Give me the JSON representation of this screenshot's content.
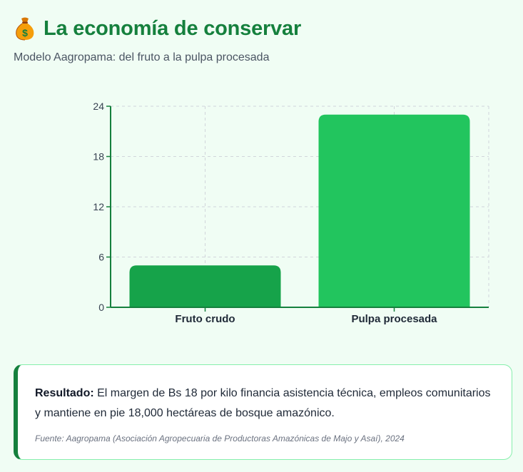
{
  "header": {
    "icon": "money-bag-icon",
    "title": "La economía de conservar",
    "subtitle": "Modelo Aagropama: del fruto a la pulpa procesada"
  },
  "chart_data": {
    "type": "bar",
    "categories": [
      "Fruto crudo",
      "Pulpa procesada"
    ],
    "values": [
      5,
      23
    ],
    "colors": [
      "#16a34a",
      "#22c55e"
    ],
    "yticks": [
      0,
      6,
      12,
      18,
      24
    ],
    "ylim": [
      0,
      24
    ],
    "grid": true,
    "xlabel": "",
    "ylabel": ""
  },
  "result": {
    "label": "Resultado:",
    "text": " El margen de Bs 18 por kilo financia asistencia técnica, empleos comunitarios y mantiene en pie 18,000 hectáreas de bosque amazónico.",
    "source": "Fuente: Aagropama (Asociación Agropecuaria de Productoras Amazónicas de Majo y Asaí), 2024"
  },
  "colors": {
    "accent": "#15803d",
    "background": "#f0fdf4",
    "card_border": "#86efac"
  }
}
